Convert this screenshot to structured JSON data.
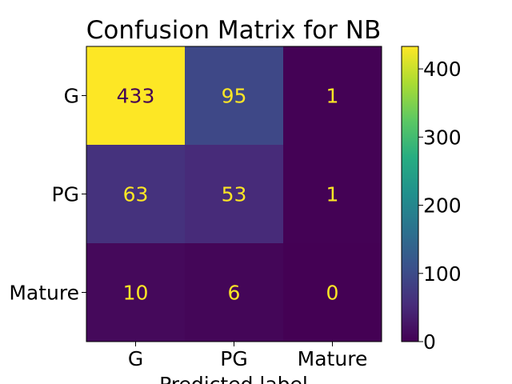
{
  "chart_data": {
    "type": "heatmap",
    "title": "Confusion Matrix for NB",
    "xlabel": "Predicted label",
    "ylabel": "",
    "x_categories": [
      "G",
      "PG",
      "Mature"
    ],
    "y_categories": [
      "G",
      "PG",
      "Mature"
    ],
    "matrix": [
      [
        433,
        95,
        1
      ],
      [
        63,
        53,
        1
      ],
      [
        10,
        6,
        0
      ]
    ],
    "colorbar": {
      "colormap": "viridis",
      "range": [
        0,
        433
      ],
      "ticks": [
        0,
        100,
        200,
        300,
        400
      ],
      "tick_labels": [
        "0",
        "100",
        "200",
        "300",
        "400"
      ]
    },
    "colors": {
      "text_on_dark": "#fde725",
      "text_on_light": "#440154"
    }
  }
}
